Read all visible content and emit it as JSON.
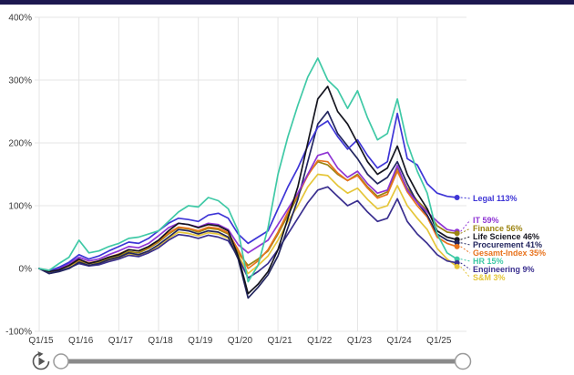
{
  "page": {
    "top_bar_color": "#1d1850",
    "background": "#ffffff"
  },
  "chart_data": {
    "type": "line",
    "title": "",
    "xlabel": "",
    "ylabel": "",
    "grid": true,
    "legend_position": "right-direct-labels",
    "ylim": [
      -100,
      400
    ],
    "y_ticks": [
      {
        "value": 400,
        "label": "400%"
      },
      {
        "value": 300,
        "label": "300%"
      },
      {
        "value": 200,
        "label": "200%"
      },
      {
        "value": 100,
        "label": "100%"
      },
      {
        "value": 0,
        "label": "0%"
      },
      {
        "value": -100,
        "label": "-100%"
      }
    ],
    "x_year_ticks": [
      "Q1/15",
      "Q1/16",
      "Q1/17",
      "Q1/18",
      "Q1/19",
      "Q1/20",
      "Q1/21",
      "Q1/22",
      "Q1/23",
      "Q1/24",
      "Q1/25"
    ],
    "quarters": [
      "Q1/15",
      "Q2/15",
      "Q3/15",
      "Q4/15",
      "Q1/16",
      "Q2/16",
      "Q3/16",
      "Q4/16",
      "Q1/17",
      "Q2/17",
      "Q3/17",
      "Q4/17",
      "Q1/18",
      "Q2/18",
      "Q3/18",
      "Q4/18",
      "Q1/19",
      "Q2/19",
      "Q3/19",
      "Q4/19",
      "Q1/20",
      "Q2/20",
      "Q3/20",
      "Q4/20",
      "Q1/21",
      "Q2/21",
      "Q3/21",
      "Q4/21",
      "Q1/22",
      "Q2/22",
      "Q3/22",
      "Q4/22",
      "Q1/23",
      "Q2/23",
      "Q3/23",
      "Q4/23",
      "Q1/24",
      "Q2/24",
      "Q3/24",
      "Q4/24",
      "Q1/25",
      "Q2/25",
      "Q3/25"
    ],
    "series": [
      {
        "name": "Finance",
        "color": "#9c8412",
        "end_value_pct": 56,
        "end_label": "Finance 56%",
        "values": [
          0,
          -6,
          -2,
          4,
          12,
          8,
          10,
          16,
          20,
          27,
          25,
          32,
          42,
          55,
          65,
          63,
          58,
          64,
          62,
          55,
          25,
          5,
          15,
          28,
          55,
          85,
          115,
          150,
          170,
          165,
          150,
          140,
          150,
          130,
          115,
          122,
          160,
          128,
          108,
          92,
          68,
          58,
          56
        ]
      },
      {
        "name": "S&M",
        "color": "#e5c63a",
        "end_value_pct": 3,
        "end_label": "S&M 3%",
        "values": [
          0,
          -7,
          -3,
          2,
          10,
          5,
          8,
          13,
          17,
          23,
          21,
          27,
          36,
          48,
          58,
          56,
          52,
          57,
          55,
          48,
          22,
          -8,
          5,
          20,
          45,
          75,
          100,
          130,
          150,
          148,
          132,
          120,
          128,
          110,
          95,
          100,
          132,
          100,
          80,
          62,
          32,
          15,
          3
        ]
      },
      {
        "name": "Gesamt-Index",
        "color": "#e8731e",
        "end_value_pct": 35,
        "end_label": "Gesamt-Index 35%",
        "values": [
          0,
          -5,
          -1,
          5,
          14,
          9,
          12,
          18,
          23,
          30,
          28,
          34,
          44,
          57,
          66,
          64,
          60,
          66,
          64,
          57,
          30,
          0,
          12,
          30,
          58,
          90,
          118,
          148,
          172,
          170,
          152,
          140,
          148,
          128,
          112,
          118,
          155,
          122,
          100,
          82,
          50,
          40,
          35
        ]
      },
      {
        "name": "Engineering",
        "color": "#3a2f8f",
        "end_value_pct": 9,
        "end_label": "Engineering 9%",
        "values": [
          0,
          -8,
          -4,
          1,
          8,
          4,
          6,
          11,
          15,
          21,
          19,
          25,
          33,
          45,
          54,
          52,
          48,
          53,
          50,
          44,
          18,
          -15,
          -5,
          8,
          30,
          55,
          80,
          105,
          125,
          130,
          115,
          100,
          108,
          90,
          75,
          80,
          111,
          75,
          55,
          40,
          22,
          12,
          9
        ]
      },
      {
        "name": "Procurement",
        "color": "#23265f",
        "end_value_pct": 41,
        "end_label": "Procurement 41%",
        "values": [
          0,
          -8,
          -5,
          0,
          10,
          5,
          8,
          14,
          18,
          25,
          22,
          28,
          38,
          50,
          62,
          60,
          55,
          60,
          58,
          50,
          15,
          -47,
          -30,
          -10,
          20,
          65,
          110,
          170,
          230,
          250,
          215,
          195,
          175,
          150,
          135,
          145,
          170,
          135,
          105,
          85,
          55,
          45,
          41
        ]
      },
      {
        "name": "IT",
        "color": "#8f35d4",
        "end_value_pct": 59,
        "end_label": "IT 59%",
        "values": [
          0,
          -5,
          0,
          8,
          18,
          12,
          15,
          22,
          28,
          35,
          33,
          40,
          52,
          65,
          72,
          70,
          66,
          72,
          70,
          62,
          38,
          25,
          35,
          45,
          70,
          95,
          120,
          150,
          180,
          185,
          160,
          145,
          155,
          135,
          120,
          125,
          164,
          125,
          105,
          90,
          75,
          62,
          59
        ]
      },
      {
        "name": "Legal",
        "color": "#3e35d6",
        "end_value_pct": 113,
        "end_label": "Legal 113%",
        "values": [
          0,
          -4,
          2,
          10,
          22,
          15,
          20,
          28,
          35,
          42,
          40,
          48,
          60,
          72,
          80,
          78,
          75,
          85,
          88,
          80,
          55,
          40,
          50,
          60,
          95,
          130,
          160,
          195,
          225,
          235,
          210,
          190,
          205,
          180,
          160,
          170,
          247,
          175,
          165,
          135,
          120,
          115,
          113
        ]
      },
      {
        "name": "Life Science",
        "color": "#15151f",
        "end_value_pct": 46,
        "end_label": "Life Science 46%",
        "values": [
          0,
          -5,
          -2,
          5,
          15,
          8,
          12,
          18,
          22,
          30,
          28,
          35,
          45,
          60,
          72,
          70,
          65,
          70,
          68,
          60,
          20,
          -40,
          -25,
          -5,
          30,
          80,
          130,
          200,
          270,
          290,
          250,
          230,
          200,
          170,
          150,
          160,
          195,
          150,
          120,
          95,
          60,
          50,
          46
        ]
      },
      {
        "name": "HR",
        "color": "#3fc9a6",
        "end_value_pct": 15,
        "end_label": "HR 15%",
        "values": [
          0,
          -3,
          8,
          18,
          45,
          25,
          28,
          35,
          40,
          48,
          50,
          55,
          60,
          75,
          90,
          100,
          98,
          113,
          108,
          95,
          60,
          -21,
          5,
          65,
          150,
          210,
          260,
          305,
          335,
          300,
          285,
          255,
          283,
          240,
          205,
          215,
          270,
          200,
          155,
          120,
          55,
          25,
          15
        ]
      }
    ]
  },
  "controls": {
    "play_button": "play-animation",
    "slider": {
      "position_start": 0,
      "position_end": 100
    }
  }
}
